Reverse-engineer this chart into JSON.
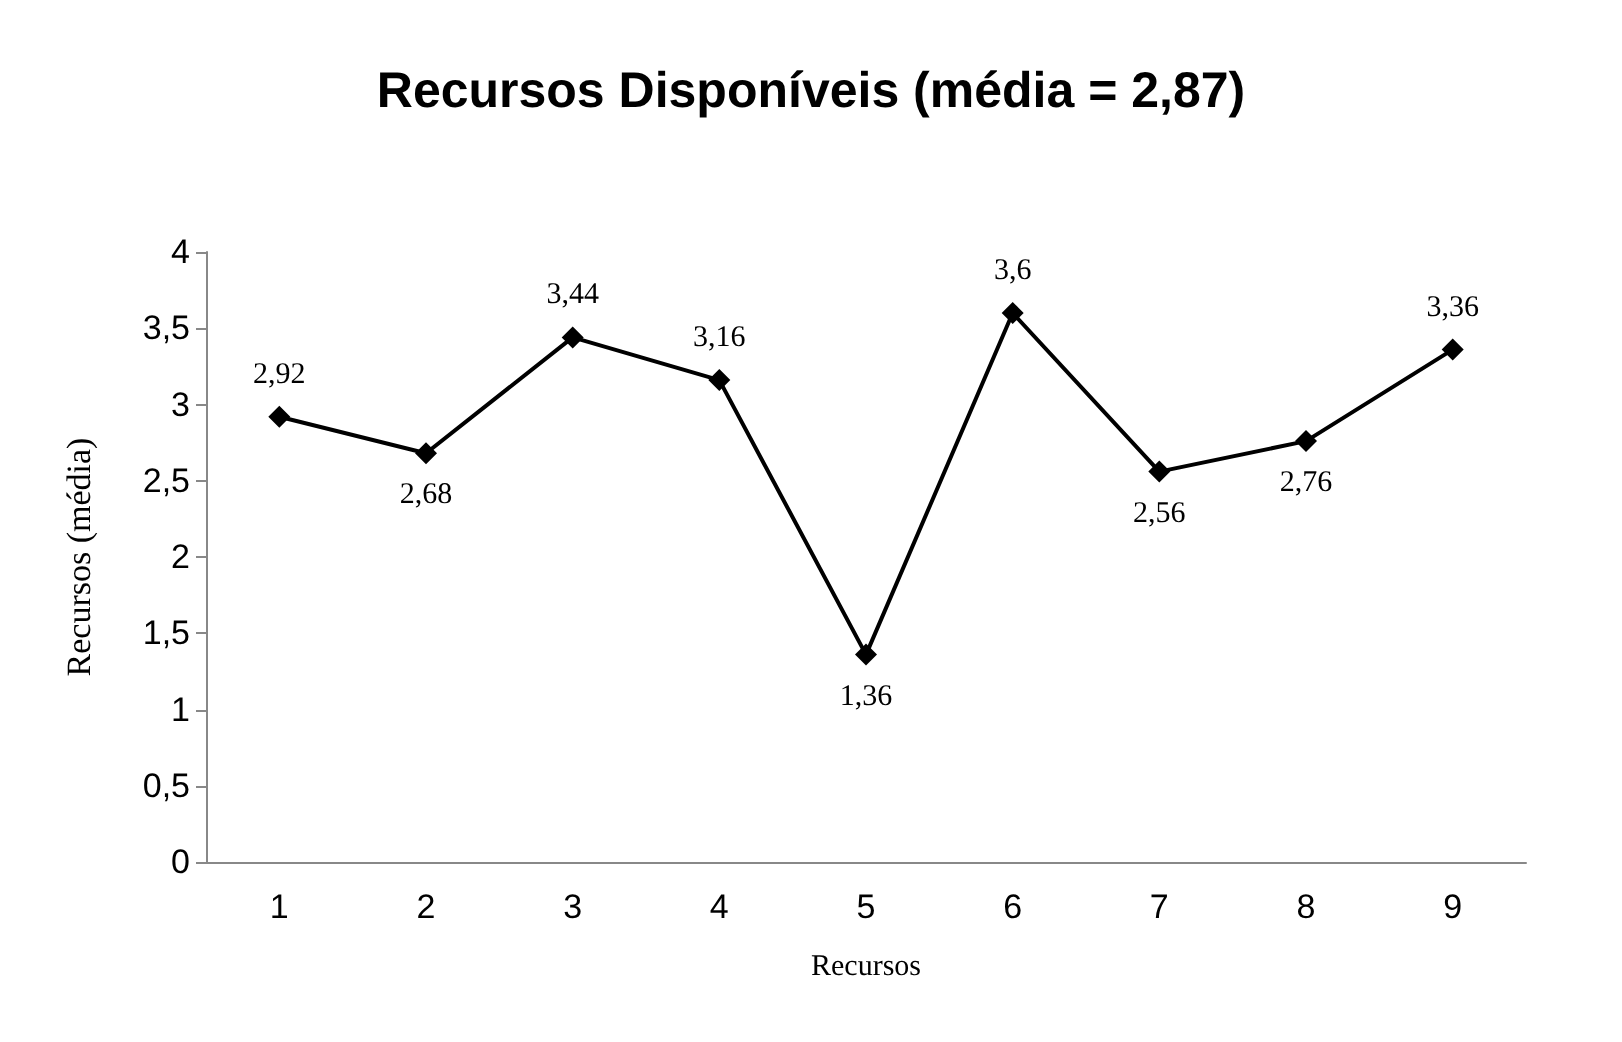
{
  "chart_data": {
    "type": "line",
    "title": "Recursos Disponíveis (média = 2,87)",
    "xlabel": "Recursos",
    "ylabel": "Recursos (média)",
    "categories": [
      "1",
      "2",
      "3",
      "4",
      "5",
      "6",
      "7",
      "8",
      "9"
    ],
    "series": [
      {
        "color": "#000000",
        "values": [
          2.92,
          2.68,
          3.44,
          3.16,
          1.36,
          3.6,
          2.56,
          2.76,
          3.36
        ],
        "value_labels": [
          "2,92",
          "2,68",
          "3,44",
          "3,16",
          "1,36",
          "3,6",
          "2,56",
          "2,76",
          "3,36"
        ]
      }
    ],
    "ylim": [
      0,
      4
    ],
    "yticks": [
      0,
      {
        "value": 0.5,
        "label": "0,5"
      },
      1,
      {
        "value": 1.5,
        "label": "1,5"
      },
      2,
      {
        "value": 2.5,
        "label": "2,5"
      },
      3,
      {
        "value": 3.5,
        "label": "3,5"
      },
      4
    ],
    "grid": false,
    "marker": "diamond",
    "line_style": "solid"
  }
}
